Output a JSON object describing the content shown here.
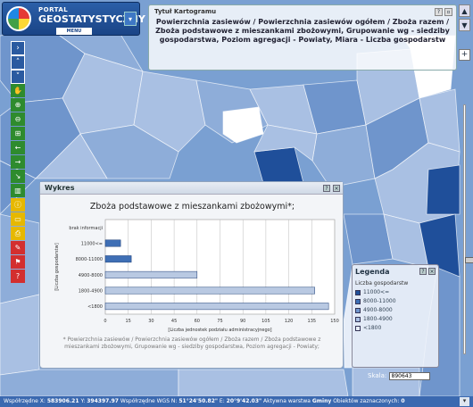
{
  "logo": {
    "line1": "PORTAL",
    "line2": "GEOSTATYSTYCZNY",
    "menu": "MENU"
  },
  "title_box": {
    "label": "Tytuł Kartogramu",
    "text": "Powierzchnia zasiewów / Powierzchnia zasiewów ogółem / Zboża razem / Zboża podstawowe z mieszankami zbożowymi, Grupowanie wg - siedziby gospodarstwa, Poziom agregacji - Powiaty, Miara - Liczba gospodarstw"
  },
  "toolbar": {
    "icons": [
      "pan-hand-icon",
      "zoom-in-icon",
      "zoom-out-icon",
      "zoom-box-icon",
      "prev-icon",
      "next-icon",
      "export-icon",
      "chart-icon",
      "info-icon",
      "folder-icon",
      "print-icon",
      "tools-icon",
      "flag-icon",
      "help-icon"
    ],
    "colors": [
      "#2e8b2e",
      "#2e8b2e",
      "#2e8b2e",
      "#2e8b2e",
      "#2e8b2e",
      "#2e8b2e",
      "#2e8b2e",
      "#2e8b2e",
      "#e6b800",
      "#e6b800",
      "#e6b800",
      "#d32f2f",
      "#d32f2f",
      "#d32f2f"
    ]
  },
  "chart_window": {
    "header": "Wykres",
    "footnote": "* Powierzchnia zasiewów / Powierzchnia zasiewów ogółem / Zboża razem / Zboża podstawowe z mieszankami zbożowymi, Grupowanie wg - siedziby gospodarstwa, Poziom agregacji - Powiaty;"
  },
  "chart_data": {
    "type": "bar",
    "orientation": "horizontal",
    "title": "Zboża podstawowe z mieszankami zbożowymi*;",
    "categories": [
      "brak informacji",
      "11000<=",
      "8000-11000",
      "4900-8000",
      "1800-4900",
      "<1800"
    ],
    "values": [
      0,
      10,
      17,
      60,
      137,
      146
    ],
    "xlabel": "[Liczba jednostek podziału administracyjnego]",
    "ylabel": "[Liczba gospodarstw]",
    "xlim": [
      0,
      150
    ],
    "xticks": [
      0,
      15,
      30,
      45,
      60,
      75,
      90,
      105,
      120,
      135,
      150
    ],
    "grid": true
  },
  "legend": {
    "title": "Legenda",
    "subtitle": "Liczba gospodarstw",
    "items": [
      {
        "label": "11000<=",
        "color": "#1f4f9a"
      },
      {
        "label": "8000-11000",
        "color": "#3c6fb6"
      },
      {
        "label": "4900-8000",
        "color": "#6f95cc"
      },
      {
        "label": "1800-4900",
        "color": "#a9c0e3"
      },
      {
        "label": "<1800",
        "color": "#e6edf8"
      }
    ]
  },
  "scale": {
    "label": "Skala:",
    "value": "890643"
  },
  "status": {
    "x_label": "Współrzędne X:",
    "x": "583906.21",
    "y_label": "Y:",
    "y": "394397.97",
    "wgs_label": "Współrzędne WGS N:",
    "n": "51°24'50.82\"",
    "e_label": "E:",
    "e": "20°9'42.03\"",
    "layer_label": "Aktywna warstwa",
    "layer": "Gminy",
    "objects_label": "Obiektów zaznaczonych:",
    "objects": "0"
  }
}
